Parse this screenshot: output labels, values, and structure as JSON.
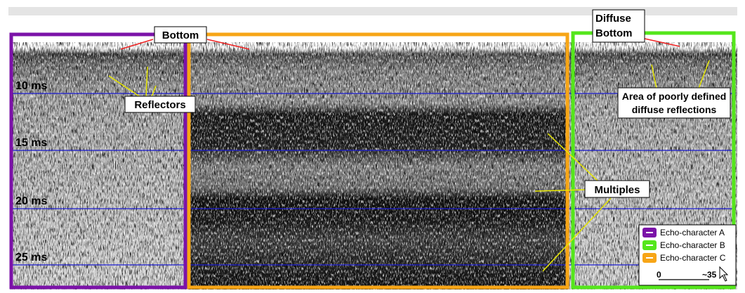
{
  "labels": {
    "bottom": "Bottom",
    "diffuse_bottom": [
      "Diffuse",
      "Bottom"
    ],
    "reflectors": "Reflectors",
    "area": [
      "Area of poorly defined",
      "diffuse reflections"
    ],
    "multiples": "Multiples"
  },
  "depth_labels": [
    "10 ms",
    "15 ms",
    "20 ms",
    "25 ms"
  ],
  "legend": {
    "items": [
      {
        "label": "Echo-character A",
        "color": "#7b12a8"
      },
      {
        "label": "Echo-character B",
        "color": "#55e61c"
      },
      {
        "label": "Echo-character C",
        "color": "#f7a516"
      }
    ],
    "scale": {
      "start": "0",
      "end": "~35"
    }
  }
}
